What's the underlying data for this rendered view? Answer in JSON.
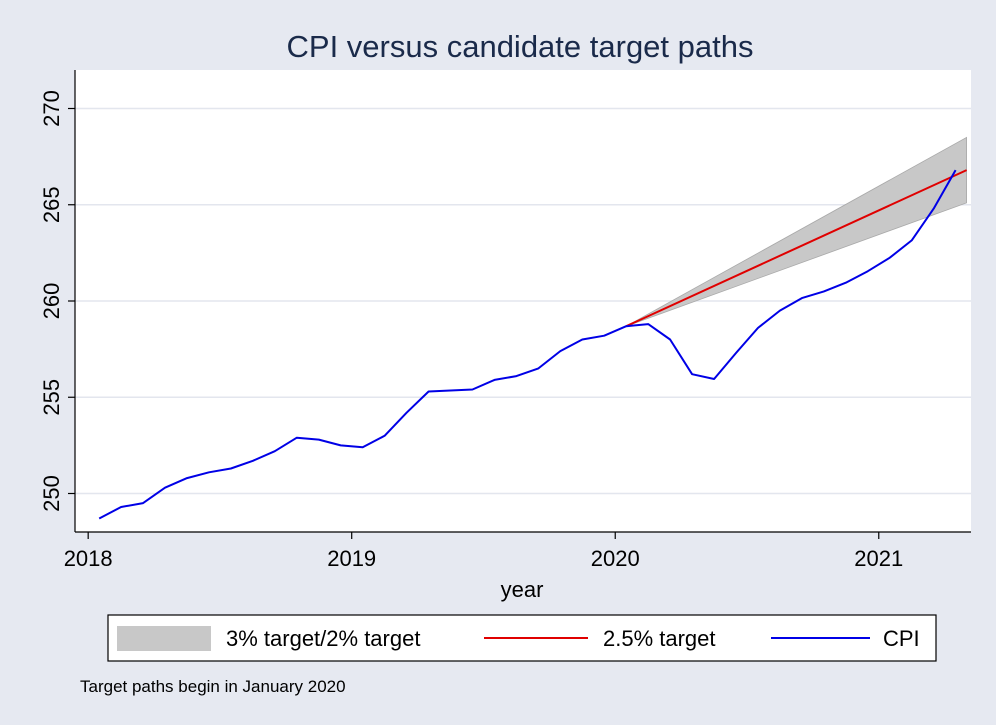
{
  "chart_data": {
    "type": "line",
    "title": "CPI versus candidate target paths",
    "xlabel": "year",
    "ylabel": "",
    "xlim": [
      2017.95,
      2021.35
    ],
    "ylim": [
      248,
      272
    ],
    "x_ticks": [
      2018,
      2019,
      2020,
      2021
    ],
    "y_ticks": [
      250,
      255,
      260,
      265,
      270
    ],
    "grid": true,
    "legend_position": "bottom",
    "band": {
      "name": "3% target/2% target",
      "color": "#c8c8c8",
      "x": [
        2020.0417,
        2021.3333
      ],
      "upper": [
        258.69,
        268.5
      ],
      "lower": [
        258.69,
        265.1
      ]
    },
    "series": [
      {
        "name": "2.5% target",
        "color": "#e00000",
        "x": [
          2020.0417,
          2021.3333
        ],
        "values": [
          258.69,
          266.8
        ]
      },
      {
        "name": "CPI",
        "color": "#0000e6",
        "x": [
          2018.0417,
          2018.125,
          2018.2083,
          2018.2917,
          2018.375,
          2018.4583,
          2018.5417,
          2018.625,
          2018.7083,
          2018.7917,
          2018.875,
          2018.9583,
          2019.0417,
          2019.125,
          2019.2083,
          2019.2917,
          2019.375,
          2019.4583,
          2019.5417,
          2019.625,
          2019.7083,
          2019.7917,
          2019.875,
          2019.9583,
          2020.0417,
          2020.125,
          2020.2083,
          2020.2917,
          2020.375,
          2020.4583,
          2020.5417,
          2020.625,
          2020.7083,
          2020.7917,
          2020.875,
          2020.9583,
          2021.0417,
          2021.125,
          2021.2083,
          2021.2917
        ],
        "values": [
          248.7,
          249.3,
          249.5,
          250.3,
          250.8,
          251.1,
          251.3,
          251.7,
          252.2,
          252.9,
          252.8,
          252.5,
          252.4,
          253.0,
          254.2,
          255.3,
          255.35,
          255.4,
          255.9,
          256.1,
          256.5,
          257.4,
          258.0,
          258.2,
          258.69,
          258.8,
          258.0,
          256.2,
          255.95,
          257.3,
          258.6,
          259.5,
          260.15,
          260.5,
          260.95,
          261.55,
          262.25,
          263.15,
          264.8,
          266.8
        ]
      }
    ],
    "note": "Target paths begin in January 2020"
  }
}
